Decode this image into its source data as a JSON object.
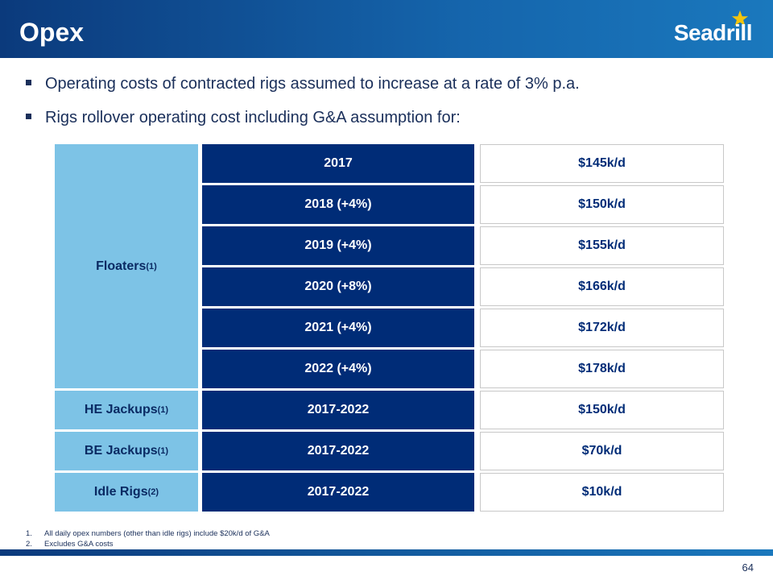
{
  "header": {
    "title": "Opex",
    "logo_text": "Seadrill"
  },
  "bullets": [
    "Operating costs of contracted rigs assumed to increase at a rate of 3% p.a.",
    "Rigs rollover operating cost including G&A assumption for:"
  ],
  "table": {
    "groups": [
      {
        "label": "Floaters",
        "note": "(1)"
      },
      {
        "label": "HE Jackups",
        "note": "(1)"
      },
      {
        "label": "BE Jackups",
        "note": "(1)"
      },
      {
        "label": "Idle Rigs",
        "note": "(2)"
      }
    ],
    "periods": [
      "2017",
      "2018 (+4%)",
      "2019 (+4%)",
      "2020 (+8%)",
      "2021 (+4%)",
      "2022 (+4%)",
      "2017-2022",
      "2017-2022",
      "2017-2022"
    ],
    "costs": [
      "$145k/d",
      "$150k/d",
      "$155k/d",
      "$166k/d",
      "$172k/d",
      "$178k/d",
      "$150k/d",
      "$70k/d",
      "$10k/d"
    ]
  },
  "footnotes": [
    {
      "num": "1.",
      "text": "All daily opex numbers (other than idle rigs) include $20k/d of G&A"
    },
    {
      "num": "2.",
      "text": "Excludes G&A costs"
    }
  ],
  "page_number": "64",
  "colors": {
    "navy": "#002c77",
    "light_blue": "#7dc3e6",
    "star": "#f2c40e"
  }
}
